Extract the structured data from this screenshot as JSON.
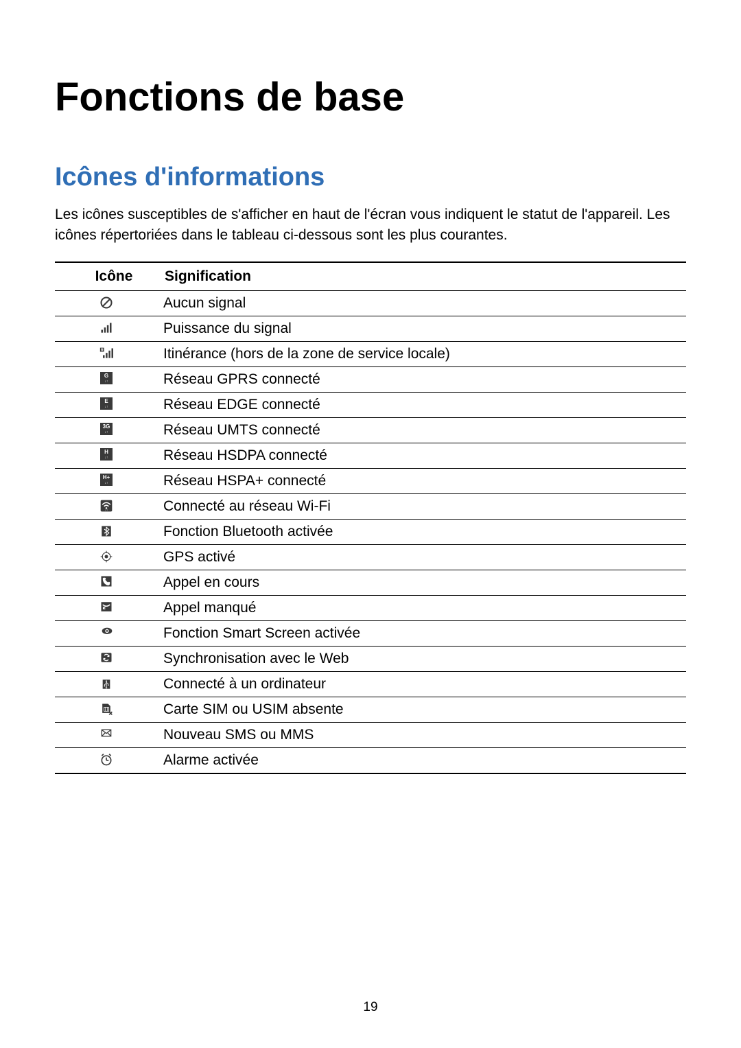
{
  "page": {
    "title": "Fonctions de base",
    "section": "Icônes d'informations",
    "intro": "Les icônes susceptibles de s'afficher en haut de l'écran vous indiquent le statut de l'appareil. Les icônes répertoriées dans le tableau ci-dessous sont les plus courantes.",
    "page_number": "19"
  },
  "table": {
    "header_icon": "Icône",
    "header_desc": "Signification",
    "rows": [
      {
        "icon": "no-signal",
        "desc": "Aucun signal"
      },
      {
        "icon": "signal",
        "desc": "Puissance du signal"
      },
      {
        "icon": "roaming",
        "desc": "Itinérance (hors de la zone de service locale)"
      },
      {
        "icon": "gprs",
        "desc": "Réseau GPRS connecté"
      },
      {
        "icon": "edge",
        "desc": "Réseau EDGE connecté"
      },
      {
        "icon": "umts",
        "desc": "Réseau UMTS connecté"
      },
      {
        "icon": "hsdpa",
        "desc": "Réseau HSDPA connecté"
      },
      {
        "icon": "hspa-plus",
        "desc": "Réseau HSPA+ connecté"
      },
      {
        "icon": "wifi",
        "desc": "Connecté au réseau Wi-Fi"
      },
      {
        "icon": "bluetooth",
        "desc": "Fonction Bluetooth activée"
      },
      {
        "icon": "gps",
        "desc": "GPS activé"
      },
      {
        "icon": "call",
        "desc": "Appel en cours"
      },
      {
        "icon": "missed-call",
        "desc": "Appel manqué"
      },
      {
        "icon": "smart-screen",
        "desc": "Fonction Smart Screen activée"
      },
      {
        "icon": "sync",
        "desc": "Synchronisation avec le Web"
      },
      {
        "icon": "usb",
        "desc": "Connecté à un ordinateur"
      },
      {
        "icon": "sim-absent",
        "desc": "Carte SIM ou USIM absente"
      },
      {
        "icon": "message",
        "desc": "Nouveau SMS ou MMS"
      },
      {
        "icon": "alarm",
        "desc": "Alarme activée"
      }
    ]
  },
  "colors": {
    "heading_blue": "#2f6eb5",
    "text": "#000000",
    "icon_bg": "#3a3a3a",
    "background": "#ffffff"
  }
}
